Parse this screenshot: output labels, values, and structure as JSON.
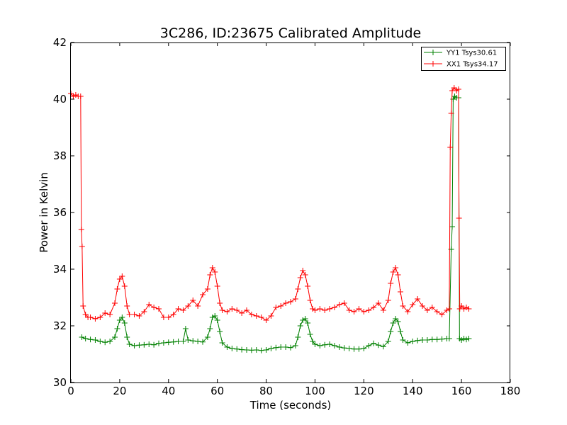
{
  "chart_data": {
    "type": "line",
    "title": "3C286, ID:23675 Calibrated Amplitude",
    "xlabel": "Time (seconds)",
    "ylabel": "Power in Kelvin",
    "xlim": [
      0,
      180
    ],
    "ylim": [
      30,
      42
    ],
    "xticks": [
      "0",
      "20",
      "40",
      "60",
      "80",
      "100",
      "120",
      "140",
      "160",
      "180"
    ],
    "yticks": [
      "30",
      "32",
      "34",
      "36",
      "38",
      "40",
      "42"
    ],
    "grid": false,
    "legend_position": "top-right",
    "marker": "+",
    "series": [
      {
        "name": "YY1 Tsys30.61",
        "color": "#008000",
        "points": [
          [
            4.5,
            31.6
          ],
          [
            6,
            31.55
          ],
          [
            8,
            31.52
          ],
          [
            10,
            31.5
          ],
          [
            12,
            31.45
          ],
          [
            14,
            31.42
          ],
          [
            16,
            31.45
          ],
          [
            18,
            31.6
          ],
          [
            19,
            31.9
          ],
          [
            20,
            32.2
          ],
          [
            21,
            32.3
          ],
          [
            22,
            32.1
          ],
          [
            23,
            31.6
          ],
          [
            24,
            31.35
          ],
          [
            26,
            31.3
          ],
          [
            28,
            31.32
          ],
          [
            30,
            31.33
          ],
          [
            32,
            31.35
          ],
          [
            34,
            31.33
          ],
          [
            36,
            31.38
          ],
          [
            38,
            31.4
          ],
          [
            40,
            31.42
          ],
          [
            42,
            31.43
          ],
          [
            44,
            31.45
          ],
          [
            46,
            31.45
          ],
          [
            47,
            31.9
          ],
          [
            48,
            31.5
          ],
          [
            50,
            31.47
          ],
          [
            52,
            31.45
          ],
          [
            54,
            31.43
          ],
          [
            56,
            31.6
          ],
          [
            57,
            31.9
          ],
          [
            58,
            32.3
          ],
          [
            59,
            32.35
          ],
          [
            60,
            32.2
          ],
          [
            61,
            31.8
          ],
          [
            62,
            31.4
          ],
          [
            64,
            31.25
          ],
          [
            66,
            31.2
          ],
          [
            68,
            31.18
          ],
          [
            70,
            31.16
          ],
          [
            72,
            31.15
          ],
          [
            74,
            31.14
          ],
          [
            76,
            31.15
          ],
          [
            78,
            31.13
          ],
          [
            80,
            31.15
          ],
          [
            82,
            31.2
          ],
          [
            84,
            31.23
          ],
          [
            86,
            31.25
          ],
          [
            88,
            31.25
          ],
          [
            90,
            31.23
          ],
          [
            92,
            31.3
          ],
          [
            93,
            31.6
          ],
          [
            94,
            32.0
          ],
          [
            95,
            32.2
          ],
          [
            96,
            32.25
          ],
          [
            97,
            32.1
          ],
          [
            98,
            31.7
          ],
          [
            99,
            31.45
          ],
          [
            100,
            31.35
          ],
          [
            102,
            31.3
          ],
          [
            104,
            31.33
          ],
          [
            106,
            31.35
          ],
          [
            108,
            31.3
          ],
          [
            110,
            31.25
          ],
          [
            112,
            31.22
          ],
          [
            114,
            31.2
          ],
          [
            116,
            31.18
          ],
          [
            118,
            31.18
          ],
          [
            120,
            31.2
          ],
          [
            122,
            31.3
          ],
          [
            124,
            31.38
          ],
          [
            126,
            31.32
          ],
          [
            128,
            31.27
          ],
          [
            130,
            31.45
          ],
          [
            131,
            31.8
          ],
          [
            132,
            32.1
          ],
          [
            133,
            32.25
          ],
          [
            134,
            32.15
          ],
          [
            135,
            31.8
          ],
          [
            136,
            31.5
          ],
          [
            138,
            31.4
          ],
          [
            140,
            31.45
          ],
          [
            142,
            31.48
          ],
          [
            144,
            31.5
          ],
          [
            146,
            31.5
          ],
          [
            148,
            31.52
          ],
          [
            150,
            31.52
          ],
          [
            152,
            31.53
          ],
          [
            154,
            31.55
          ],
          [
            155,
            31.55
          ],
          [
            155.8,
            34.7
          ],
          [
            156.2,
            35.5
          ],
          [
            156.6,
            40.0
          ],
          [
            157.2,
            40.1
          ],
          [
            158,
            40.05
          ],
          [
            158.8,
            40.05
          ],
          [
            159.2,
            31.55
          ],
          [
            160,
            31.5
          ],
          [
            161,
            31.55
          ],
          [
            162,
            31.52
          ],
          [
            163,
            31.55
          ]
        ]
      },
      {
        "name": "XX1 Tsys34.17",
        "color": "#ff0000",
        "points": [
          [
            0,
            40.2
          ],
          [
            1,
            40.1
          ],
          [
            2,
            40.15
          ],
          [
            3,
            40.1
          ],
          [
            4,
            40.1
          ],
          [
            4.3,
            35.4
          ],
          [
            4.6,
            34.8
          ],
          [
            5,
            32.7
          ],
          [
            6,
            32.4
          ],
          [
            7,
            32.3
          ],
          [
            8,
            32.3
          ],
          [
            10,
            32.25
          ],
          [
            12,
            32.3
          ],
          [
            14,
            32.45
          ],
          [
            16,
            32.4
          ],
          [
            18,
            32.8
          ],
          [
            19,
            33.3
          ],
          [
            20,
            33.65
          ],
          [
            21,
            33.75
          ],
          [
            22,
            33.4
          ],
          [
            23,
            32.7
          ],
          [
            24,
            32.4
          ],
          [
            26,
            32.4
          ],
          [
            28,
            32.35
          ],
          [
            30,
            32.5
          ],
          [
            32,
            32.75
          ],
          [
            34,
            32.65
          ],
          [
            36,
            32.6
          ],
          [
            38,
            32.3
          ],
          [
            40,
            32.3
          ],
          [
            42,
            32.4
          ],
          [
            44,
            32.6
          ],
          [
            46,
            32.55
          ],
          [
            48,
            32.7
          ],
          [
            50,
            32.9
          ],
          [
            52,
            32.7
          ],
          [
            54,
            33.1
          ],
          [
            56,
            33.3
          ],
          [
            57,
            33.8
          ],
          [
            58,
            34.05
          ],
          [
            59,
            33.9
          ],
          [
            60,
            33.4
          ],
          [
            61,
            32.8
          ],
          [
            62,
            32.55
          ],
          [
            64,
            32.5
          ],
          [
            66,
            32.6
          ],
          [
            68,
            32.55
          ],
          [
            70,
            32.45
          ],
          [
            72,
            32.55
          ],
          [
            74,
            32.4
          ],
          [
            76,
            32.35
          ],
          [
            78,
            32.3
          ],
          [
            80,
            32.2
          ],
          [
            82,
            32.35
          ],
          [
            84,
            32.65
          ],
          [
            86,
            32.7
          ],
          [
            88,
            32.8
          ],
          [
            90,
            32.85
          ],
          [
            92,
            32.95
          ],
          [
            93,
            33.3
          ],
          [
            94,
            33.7
          ],
          [
            95,
            33.95
          ],
          [
            96,
            33.8
          ],
          [
            97,
            33.4
          ],
          [
            98,
            32.9
          ],
          [
            99,
            32.6
          ],
          [
            100,
            32.55
          ],
          [
            102,
            32.6
          ],
          [
            104,
            32.55
          ],
          [
            106,
            32.6
          ],
          [
            108,
            32.65
          ],
          [
            110,
            32.75
          ],
          [
            112,
            32.8
          ],
          [
            114,
            32.55
          ],
          [
            116,
            32.5
          ],
          [
            118,
            32.6
          ],
          [
            120,
            32.5
          ],
          [
            122,
            32.55
          ],
          [
            124,
            32.65
          ],
          [
            126,
            32.8
          ],
          [
            128,
            32.55
          ],
          [
            130,
            32.9
          ],
          [
            131,
            33.5
          ],
          [
            132,
            33.9
          ],
          [
            133,
            34.05
          ],
          [
            134,
            33.8
          ],
          [
            135,
            33.2
          ],
          [
            136,
            32.7
          ],
          [
            138,
            32.5
          ],
          [
            140,
            32.75
          ],
          [
            142,
            32.95
          ],
          [
            144,
            32.7
          ],
          [
            146,
            32.55
          ],
          [
            148,
            32.65
          ],
          [
            150,
            32.5
          ],
          [
            152,
            32.4
          ],
          [
            154,
            32.55
          ],
          [
            155,
            32.6
          ],
          [
            155.4,
            38.3
          ],
          [
            155.8,
            39.5
          ],
          [
            156.2,
            40.3
          ],
          [
            157,
            40.4
          ],
          [
            158,
            40.3
          ],
          [
            158.8,
            40.35
          ],
          [
            159,
            35.8
          ],
          [
            159.3,
            32.6
          ],
          [
            160,
            32.7
          ],
          [
            161,
            32.6
          ],
          [
            162,
            32.65
          ],
          [
            163,
            32.6
          ]
        ]
      }
    ]
  }
}
